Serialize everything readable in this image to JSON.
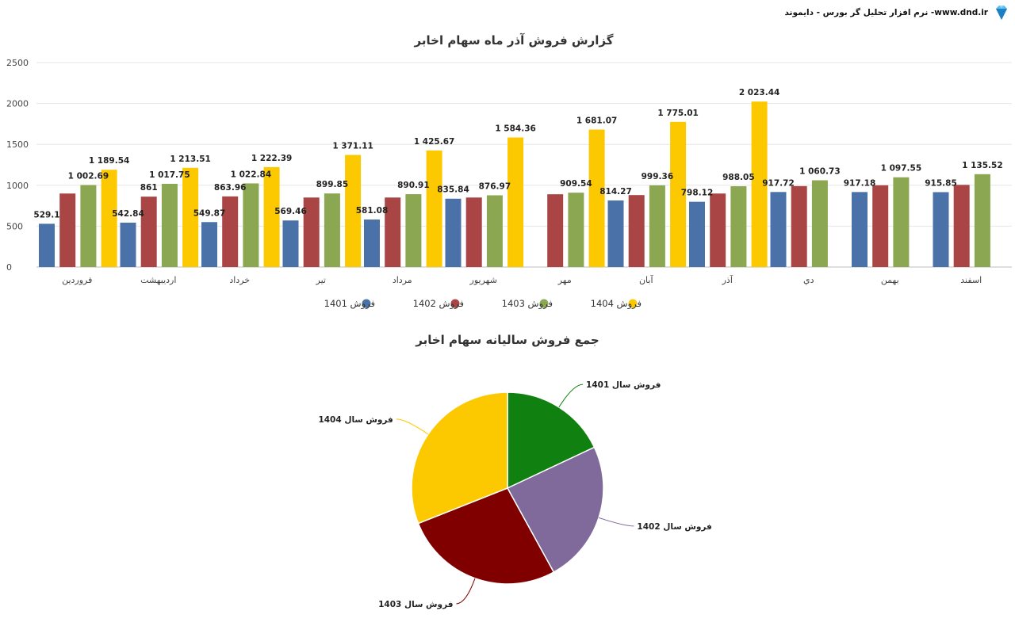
{
  "header": {
    "site_text": "نرم افزار تحلیل گر بورس - دایموند -www.dnd.ir",
    "logo": "diamond-icon"
  },
  "chart_data": [
    {
      "type": "bar",
      "title": "گزارش فروش آذر ماه سهام اخابر",
      "categories": [
        "فروردین",
        "اردیبهشت",
        "خرداد",
        "تیر",
        "مرداد",
        "شهریور",
        "مهر",
        "آبان",
        "آذر",
        "دي",
        "بهمن",
        "اسفند"
      ],
      "ylim": [
        0,
        2500
      ],
      "yticks": [
        0,
        500,
        1000,
        1500,
        2000,
        2500
      ],
      "grid": true,
      "legend": "bottom",
      "series": [
        {
          "name": "فروش 1401",
          "color": "#4a72a8",
          "values": [
            529.1,
            542.84,
            549.87,
            569.46,
            581.08,
            835.84,
            null,
            814.27,
            798.12,
            917.72,
            917.18,
            915.85
          ],
          "labels": [
            "529.1",
            "542.84",
            "549.87",
            "569.46",
            "581.08",
            "835.84",
            "",
            "814.27",
            "798.12",
            "917.72",
            "917.18",
            "915.85"
          ]
        },
        {
          "name": "فروش 1402",
          "color": "#a94545",
          "values": [
            899,
            861,
            863.96,
            850,
            850,
            850,
            890,
            880,
            899,
            990,
            1000,
            1005
          ],
          "labels": [
            "",
            "861",
            "863.96",
            "",
            "",
            "",
            "",
            "",
            "",
            "",
            "",
            ""
          ]
        },
        {
          "name": "فروش 1403",
          "color": "#8ba752",
          "values": [
            1002.69,
            1017.75,
            1022.84,
            899.85,
            890.91,
            876.97,
            909.54,
            999.36,
            988.05,
            1060.73,
            1097.55,
            1135.52
          ],
          "labels": [
            "1 002.69",
            "1 017.75",
            "1 022.84",
            "899.85",
            "890.91",
            "876.97",
            "909.54",
            "999.36",
            "988.05",
            "1 060.73",
            "1 097.55",
            "1 135.52"
          ]
        },
        {
          "name": "فروش 1404",
          "color": "#fcc900",
          "values": [
            1189.54,
            1213.51,
            1222.39,
            1371.11,
            1425.67,
            1584.36,
            1681.07,
            1775.01,
            2023.44,
            null,
            null,
            null
          ],
          "labels": [
            "1 189.54",
            "1 213.51",
            "1 222.39",
            "1 371.11",
            "1 425.67",
            "1 584.36",
            "1 681.07",
            "1 775.01",
            "2 023.44",
            "",
            "",
            ""
          ]
        }
      ]
    },
    {
      "type": "pie",
      "title": "جمع فروش سالیانه سهام اخابر",
      "slices": [
        {
          "label": "فروش سال 1401",
          "value": 18,
          "color": "#108010"
        },
        {
          "label": "فروش سال 1402",
          "value": 24,
          "color": "#7f6a9b"
        },
        {
          "label": "فروش سال 1403",
          "value": 27,
          "color": "#800000"
        },
        {
          "label": "فروش سال 1404",
          "value": 31,
          "color": "#fcc900"
        }
      ]
    }
  ]
}
